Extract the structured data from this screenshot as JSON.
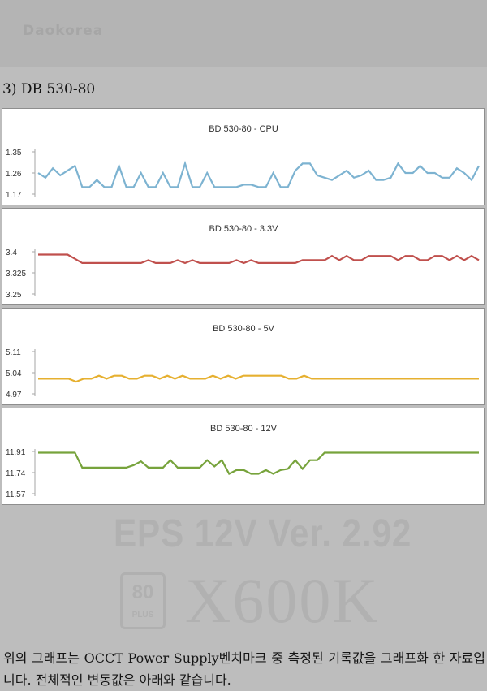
{
  "header": {
    "logo": "Daokorea",
    "section_title": "3) DB 530-80"
  },
  "chart_data": [
    {
      "type": "line",
      "title": "BD 530-80 - CPU",
      "yticks": [
        "1.35",
        "1.26",
        "1.17"
      ],
      "ylim": [
        1.17,
        1.35
      ],
      "color": "#7db3d1",
      "values": [
        1.26,
        1.24,
        1.28,
        1.25,
        1.27,
        1.29,
        1.2,
        1.2,
        1.23,
        1.2,
        1.2,
        1.29,
        1.2,
        1.2,
        1.26,
        1.2,
        1.2,
        1.26,
        1.2,
        1.2,
        1.3,
        1.2,
        1.2,
        1.26,
        1.2,
        1.2,
        1.2,
        1.2,
        1.21,
        1.21,
        1.2,
        1.2,
        1.26,
        1.2,
        1.2,
        1.27,
        1.3,
        1.3,
        1.25,
        1.24,
        1.23,
        1.25,
        1.27,
        1.24,
        1.25,
        1.27,
        1.23,
        1.23,
        1.24,
        1.3,
        1.26,
        1.26,
        1.29,
        1.26,
        1.26,
        1.24,
        1.24,
        1.28,
        1.26,
        1.23,
        1.29
      ]
    },
    {
      "type": "line",
      "title": "BD 530-80 - 3.3V",
      "yticks": [
        "3.4",
        "3.325",
        "3.25"
      ],
      "ylim": [
        3.25,
        3.4
      ],
      "color": "#c0504d",
      "values": [
        3.39,
        3.39,
        3.39,
        3.39,
        3.39,
        3.375,
        3.36,
        3.36,
        3.36,
        3.36,
        3.36,
        3.36,
        3.36,
        3.36,
        3.36,
        3.37,
        3.36,
        3.36,
        3.36,
        3.37,
        3.36,
        3.37,
        3.36,
        3.36,
        3.36,
        3.36,
        3.36,
        3.37,
        3.36,
        3.37,
        3.36,
        3.36,
        3.36,
        3.36,
        3.36,
        3.36,
        3.37,
        3.37,
        3.37,
        3.37,
        3.385,
        3.37,
        3.385,
        3.37,
        3.37,
        3.385,
        3.385,
        3.385,
        3.385,
        3.37,
        3.385,
        3.385,
        3.37,
        3.37,
        3.385,
        3.385,
        3.37,
        3.385,
        3.37,
        3.385,
        3.37
      ]
    },
    {
      "type": "line",
      "title": "BD 530-80 - 5V",
      "yticks": [
        "5.11",
        "5.04",
        "4.97"
      ],
      "ylim": [
        4.97,
        5.11
      ],
      "color": "#e6b030",
      "values": [
        5.02,
        5.02,
        5.02,
        5.02,
        5.02,
        5.01,
        5.02,
        5.02,
        5.03,
        5.02,
        5.03,
        5.03,
        5.02,
        5.02,
        5.03,
        5.03,
        5.02,
        5.03,
        5.02,
        5.03,
        5.02,
        5.02,
        5.02,
        5.03,
        5.02,
        5.03,
        5.02,
        5.03,
        5.03,
        5.03,
        5.03,
        5.03,
        5.03,
        5.02,
        5.02,
        5.03,
        5.02,
        5.02,
        5.02,
        5.02,
        5.02,
        5.02,
        5.02,
        5.02,
        5.02,
        5.02,
        5.02,
        5.02,
        5.02,
        5.02,
        5.02,
        5.02,
        5.02,
        5.02,
        5.02,
        5.02,
        5.02,
        5.02,
        5.02
      ]
    },
    {
      "type": "line",
      "title": "BD 530-80 - 12V",
      "yticks": [
        "11.91",
        "11.74",
        "11.57"
      ],
      "ylim": [
        11.57,
        11.91
      ],
      "color": "#77a33c",
      "values": [
        11.9,
        11.9,
        11.9,
        11.9,
        11.9,
        11.9,
        11.78,
        11.78,
        11.78,
        11.78,
        11.78,
        11.78,
        11.78,
        11.8,
        11.83,
        11.78,
        11.78,
        11.78,
        11.84,
        11.78,
        11.78,
        11.78,
        11.78,
        11.84,
        11.79,
        11.84,
        11.73,
        11.76,
        11.76,
        11.73,
        11.73,
        11.76,
        11.73,
        11.76,
        11.77,
        11.84,
        11.77,
        11.84,
        11.84,
        11.9,
        11.9,
        11.9,
        11.9,
        11.9,
        11.9,
        11.9,
        11.9,
        11.9,
        11.9,
        11.9,
        11.9,
        11.9,
        11.9,
        11.9,
        11.9,
        11.9,
        11.9,
        11.9,
        11.9,
        11.9,
        11.9
      ]
    }
  ],
  "watermark": {
    "line1": "EPS 12V Ver. 2.92",
    "badge_top": "80",
    "badge_bottom": "PLUS",
    "model": "X600K"
  },
  "footer": {
    "text": "위의 그래프는 OCCT Power Supply벤치마크 중 측정된 기록값을 그래프화 한 자료입니다. 전체적인 변동값은 아래와 같습니다."
  }
}
